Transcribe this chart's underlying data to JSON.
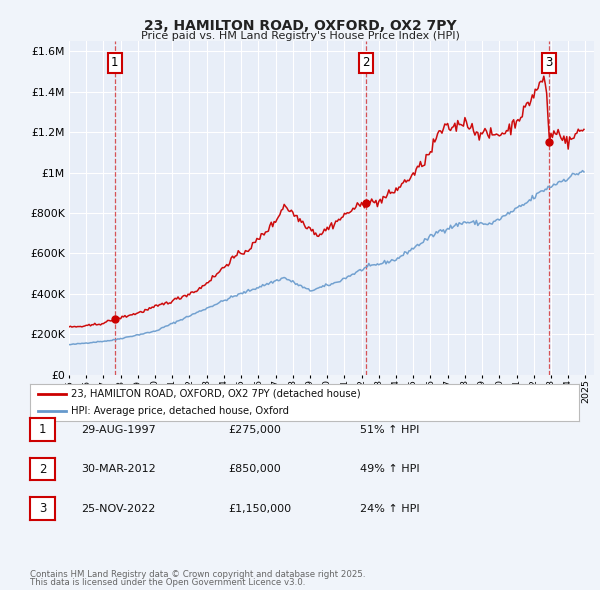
{
  "title": "23, HAMILTON ROAD, OXFORD, OX2 7PY",
  "subtitle": "Price paid vs. HM Land Registry's House Price Index (HPI)",
  "bg_color": "#f0f4fa",
  "plot_bg_color": "#e8eef8",
  "grid_color": "#ffffff",
  "red_line_color": "#cc0000",
  "blue_line_color": "#6699cc",
  "ylim": [
    0,
    1650000
  ],
  "yticks": [
    0,
    200000,
    400000,
    600000,
    800000,
    1000000,
    1200000,
    1400000,
    1600000
  ],
  "xmin": 1995,
  "xmax": 2025.5,
  "xticks": [
    1995,
    1996,
    1997,
    1998,
    1999,
    2000,
    2001,
    2002,
    2003,
    2004,
    2005,
    2006,
    2007,
    2008,
    2009,
    2010,
    2011,
    2012,
    2013,
    2014,
    2015,
    2016,
    2017,
    2018,
    2019,
    2020,
    2021,
    2022,
    2023,
    2024,
    2025
  ],
  "sale_points": [
    {
      "year": 1997.66,
      "price": 275000,
      "label": "1"
    },
    {
      "year": 2012.25,
      "price": 850000,
      "label": "2"
    },
    {
      "year": 2022.9,
      "price": 1150000,
      "label": "3"
    }
  ],
  "legend_red_label": "23, HAMILTON ROAD, OXFORD, OX2 7PY (detached house)",
  "legend_blue_label": "HPI: Average price, detached house, Oxford",
  "table_rows": [
    {
      "num": "1",
      "date": "29-AUG-1997",
      "price": "£275,000",
      "pct": "51% ↑ HPI"
    },
    {
      "num": "2",
      "date": "30-MAR-2012",
      "price": "£850,000",
      "pct": "49% ↑ HPI"
    },
    {
      "num": "3",
      "date": "25-NOV-2022",
      "price": "£1,150,000",
      "pct": "24% ↑ HPI"
    }
  ],
  "footnote1": "Contains HM Land Registry data © Crown copyright and database right 2025.",
  "footnote2": "This data is licensed under the Open Government Licence v3.0.",
  "hpi_anchors_x": [
    1995.0,
    1997.5,
    2000.0,
    2002.5,
    2004.5,
    2007.5,
    2009.0,
    2010.5,
    2012.25,
    2014.0,
    2016.5,
    2018.0,
    2019.5,
    2021.5,
    2022.5,
    2023.5,
    2024.9
  ],
  "hpi_anchors_y": [
    148000,
    170000,
    215000,
    310000,
    385000,
    480000,
    415000,
    455000,
    530000,
    570000,
    710000,
    755000,
    745000,
    845000,
    910000,
    955000,
    1010000
  ],
  "red_anchors_x": [
    1995.0,
    1996.0,
    1997.0,
    1997.66,
    1999.0,
    2001.0,
    2002.5,
    2003.5,
    2004.5,
    2005.5,
    2007.0,
    2007.5,
    2008.5,
    2009.5,
    2010.5,
    2011.5,
    2012.25,
    2013.0,
    2014.0,
    2015.0,
    2015.5,
    2016.0,
    2016.5,
    2017.0,
    2017.5,
    2018.0,
    2018.5,
    2019.0,
    2019.5,
    2020.0,
    2020.5,
    2021.0,
    2021.5,
    2022.0,
    2022.3,
    2022.5,
    2022.7,
    2022.9,
    2023.0,
    2023.5,
    2024.0,
    2024.5,
    2024.9
  ],
  "red_anchors_y": [
    235000,
    240000,
    255000,
    275000,
    305000,
    365000,
    420000,
    490000,
    575000,
    625000,
    760000,
    840000,
    760000,
    690000,
    755000,
    820000,
    850000,
    855000,
    915000,
    990000,
    1040000,
    1100000,
    1200000,
    1220000,
    1230000,
    1260000,
    1210000,
    1195000,
    1185000,
    1190000,
    1210000,
    1260000,
    1310000,
    1390000,
    1430000,
    1455000,
    1460000,
    1150000,
    1190000,
    1200000,
    1145000,
    1195000,
    1215000
  ]
}
